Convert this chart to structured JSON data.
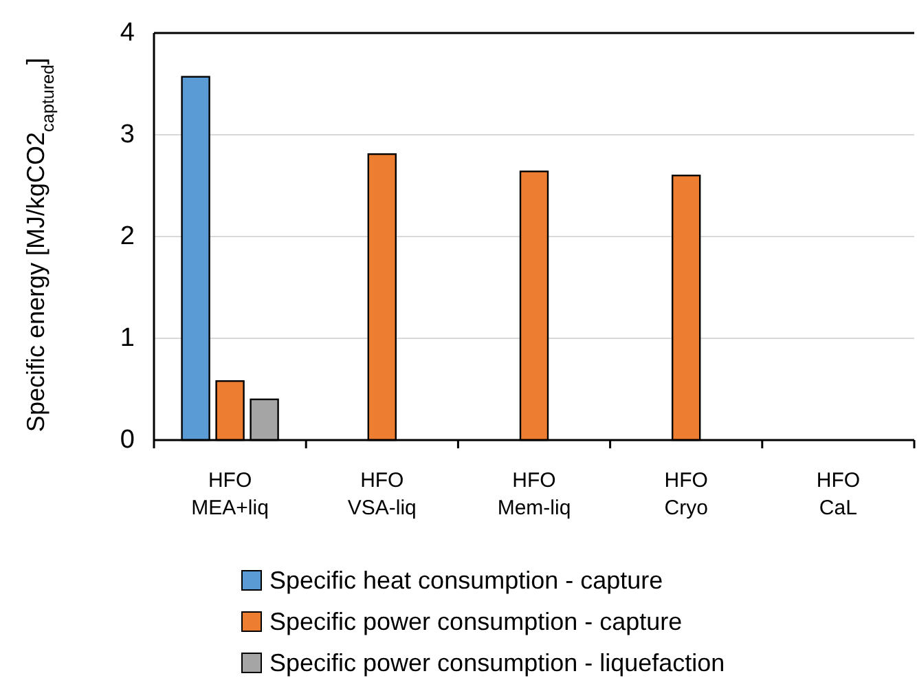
{
  "chart_data": {
    "type": "bar",
    "ylabel": "Specific energy [MJ/kgCO2$_{captured}$]",
    "categories": [
      "HFO\nMEA+liq",
      "HFO\nVSA-liq",
      "HFO\nMem-liq",
      "HFO\nCryo",
      "HFO\nCaL"
    ],
    "series": [
      {
        "name": "Specific heat consumption - capture",
        "color": "#5b9bd5",
        "values": [
          3.57,
          null,
          null,
          null,
          null
        ]
      },
      {
        "name": "Specific power consumption - capture",
        "color": "#ed7d31",
        "values": [
          0.58,
          2.81,
          2.64,
          2.6,
          null
        ]
      },
      {
        "name": "Specific power consumption - liquefaction",
        "color": "#a5a5a5",
        "values": [
          0.4,
          null,
          null,
          null,
          null
        ]
      }
    ],
    "ylim": [
      0,
      4
    ],
    "yticks": [
      0,
      1,
      2,
      3,
      4
    ],
    "grid": "y",
    "legend": "bottom"
  }
}
